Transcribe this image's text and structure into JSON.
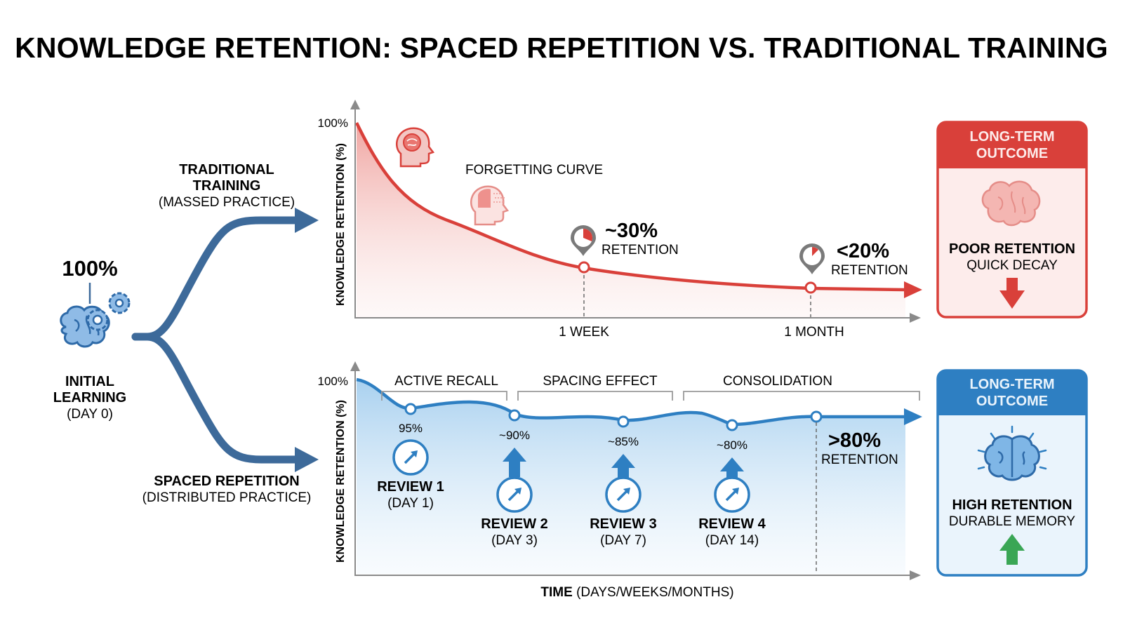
{
  "title": "KNOWLEDGE RETENTION: SPACED REPETITION VS. TRADITIONAL TRAINING",
  "initial": {
    "percent": "100%",
    "label_line1": "INITIAL",
    "label_line2": "LEARNING",
    "day": "(DAY 0)",
    "icon": "brain-gears-icon"
  },
  "traditional": {
    "label_line1": "TRADITIONAL",
    "label_line2": "TRAINING",
    "sub": "(MASSED PRACTICE)",
    "y_axis_label": "KNOWLEDGE RETENTION (%)",
    "y_max_label": "100%",
    "curve_label": "FORGETTING CURVE",
    "x_ticks": [
      "1 WEEK",
      "1 MONTH"
    ],
    "callouts": [
      {
        "value": "~30%",
        "label": "RETENTION"
      },
      {
        "value": "<20%",
        "label": "RETENTION"
      }
    ],
    "outcome": {
      "header_line1": "LONG-TERM",
      "header_line2": "OUTCOME",
      "line1": "POOR RETENTION",
      "line2": "QUICK DECAY",
      "color": "#d9403a",
      "icon": "faded-brain-icon",
      "arrow_icon": "arrow-down-icon"
    }
  },
  "spaced": {
    "label_line1": "SPACED REPETITION",
    "sub": "(DISTRIBUTED PRACTICE)",
    "y_axis_label": "KNOWLEDGE RETENTION (%)",
    "y_max_label": "100%",
    "phases": [
      "ACTIVE RECALL",
      "SPACING EFFECT",
      "CONSOLIDATION"
    ],
    "reviews": [
      {
        "pct": "95%",
        "name": "REVIEW 1",
        "day": "(DAY 1)"
      },
      {
        "pct": "~90%",
        "name": "REVIEW 2",
        "day": "(DAY 3)"
      },
      {
        "pct": "~85%",
        "name": "REVIEW 3",
        "day": "(DAY 7)"
      },
      {
        "pct": "~80%",
        "name": "REVIEW 4",
        "day": "(DAY 14)"
      }
    ],
    "final": {
      "value": ">80%",
      "label": "RETENTION"
    },
    "x_axis_bold": "TIME",
    "x_axis_rest": " (DAYS/WEEKS/MONTHS)",
    "outcome": {
      "header_line1": "LONG-TERM",
      "header_line2": "OUTCOME",
      "line1": "HIGH RETENTION",
      "line2": "DURABLE MEMORY",
      "color": "#2e7fc2",
      "icon": "glowing-brain-icon",
      "arrow_icon": "arrow-up-icon"
    }
  },
  "colors": {
    "red": "#d9403a",
    "blue": "#2e7fc2",
    "branch": "#3d6a9a",
    "green": "#3aa655",
    "axis": "#8a8a8a"
  }
}
